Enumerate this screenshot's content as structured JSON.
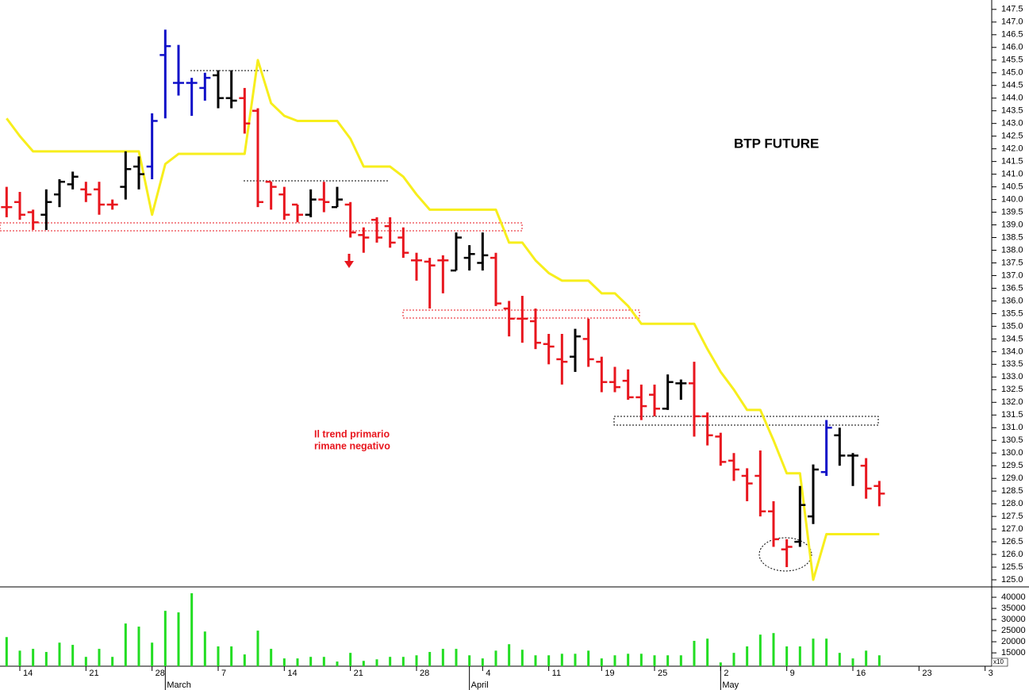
{
  "chart_data": {
    "type": "ohlc",
    "title": "BTP FUTURE",
    "annotation_lines": [
      "Il trend primario",
      "rimane negativo"
    ],
    "categories": [
      null,
      "14",
      null,
      null,
      null,
      null,
      "21",
      null,
      null,
      null,
      null,
      "28",
      null,
      null,
      null,
      null,
      "7",
      null,
      null,
      null,
      null,
      "14",
      null,
      null,
      null,
      null,
      "21",
      null,
      null,
      null,
      null,
      "28",
      null,
      null,
      null,
      null,
      "4",
      null,
      null,
      null,
      null,
      "11",
      null,
      null,
      null,
      "19",
      null,
      null,
      null,
      "25",
      null,
      null,
      null,
      null,
      "2",
      null,
      null,
      null,
      null,
      "9",
      null,
      null,
      null,
      null,
      "16",
      null,
      null,
      null,
      null,
      "23",
      null,
      null,
      null,
      null,
      "3"
    ],
    "month_labels": [
      null,
      null,
      null,
      null,
      null,
      null,
      null,
      null,
      null,
      null,
      null,
      null,
      "March",
      null,
      null,
      null,
      null,
      null,
      null,
      null,
      null,
      null,
      null,
      null,
      null,
      null,
      null,
      null,
      null,
      null,
      null,
      null,
      null,
      null,
      null,
      "April",
      null,
      null,
      null,
      null,
      null,
      null,
      null,
      null,
      null,
      null,
      null,
      null,
      null,
      null,
      null,
      null,
      null,
      null,
      "May",
      null,
      null,
      null,
      null,
      null,
      null,
      null,
      null,
      null,
      null,
      null,
      null,
      null,
      null,
      null,
      null,
      null,
      null,
      null,
      null
    ],
    "open": [
      139.7,
      139.9,
      139.5,
      139.4,
      140.2,
      140.6,
      140.4,
      140.4,
      139.8,
      140.5,
      141.3,
      141.3,
      145.7,
      144.6,
      144.6,
      144.4,
      144.9,
      144.0,
      144.0,
      143.5,
      140.7,
      140.2,
      139.8,
      139.4,
      140.0,
      139.7,
      139.8,
      138.6,
      139.2,
      138.95,
      138.5,
      137.6,
      137.55,
      137.6,
      137.2,
      137.7,
      137.5,
      137.7,
      135.7,
      135.3,
      135.2,
      134.3,
      133.7,
      133.8,
      134.5,
      133.6,
      132.8,
      132.85,
      132.2,
      132.3,
      131.75,
      132.75,
      132.75,
      131.45,
      130.65,
      129.7,
      129.1,
      129.1,
      127.7,
      126.2,
      126.5,
      127.5,
      129.25,
      130.7,
      129.9,
      129.5,
      128.7,
      null,
      null,
      null,
      null,
      null,
      null,
      null,
      null
    ],
    "high": [
      140.5,
      140.3,
      139.6,
      140.4,
      140.8,
      141.1,
      140.7,
      140.7,
      140.0,
      141.9,
      141.7,
      143.4,
      146.7,
      146.1,
      144.8,
      145.0,
      145.1,
      145.1,
      144.4,
      143.6,
      140.7,
      140.5,
      139.8,
      140.4,
      140.7,
      140.5,
      139.9,
      138.9,
      139.3,
      139.3,
      138.9,
      137.9,
      137.7,
      137.8,
      138.7,
      138.2,
      138.7,
      137.9,
      136.0,
      136.2,
      135.7,
      134.7,
      134.7,
      134.9,
      135.3,
      133.8,
      133.4,
      133.3,
      132.7,
      132.7,
      133.1,
      132.9,
      133.6,
      131.6,
      130.8,
      130.0,
      129.4,
      130.1,
      128.1,
      126.6,
      128.7,
      129.55,
      131.3,
      131.0,
      130.0,
      129.8,
      128.9,
      null,
      null,
      null,
      null,
      null,
      null,
      null,
      null
    ],
    "low": [
      139.3,
      139.2,
      138.8,
      138.8,
      139.7,
      140.4,
      139.9,
      139.4,
      139.6,
      140.0,
      140.4,
      140.8,
      143.2,
      144.1,
      143.3,
      143.9,
      143.6,
      143.6,
      142.6,
      139.7,
      139.6,
      139.2,
      139.1,
      139.3,
      139.5,
      139.7,
      138.5,
      137.9,
      138.3,
      138.1,
      137.7,
      136.8,
      135.7,
      136.3,
      137.2,
      137.2,
      137.2,
      135.8,
      134.6,
      134.35,
      134.1,
      133.5,
      132.7,
      133.2,
      133.4,
      132.4,
      132.4,
      132.1,
      131.3,
      131.45,
      131.7,
      132.1,
      130.65,
      130.3,
      129.5,
      128.9,
      128.1,
      127.5,
      126.3,
      125.5,
      126.3,
      127.2,
      129.1,
      129.5,
      128.7,
      128.2,
      127.9,
      null,
      null,
      null,
      null,
      null,
      null,
      null,
      null
    ],
    "close": [
      139.7,
      139.4,
      139.1,
      139.9,
      140.7,
      140.9,
      140.2,
      139.8,
      139.8,
      141.2,
      141.0,
      143.1,
      146.05,
      144.6,
      144.6,
      144.8,
      144.0,
      143.9,
      143.0,
      139.9,
      140.5,
      139.4,
      139.4,
      140.0,
      139.9,
      140.0,
      138.7,
      138.5,
      138.5,
      138.3,
      137.9,
      137.6,
      137.4,
      137.6,
      138.5,
      137.85,
      137.8,
      135.9,
      135.3,
      135.3,
      134.35,
      134.2,
      133.6,
      134.6,
      133.7,
      132.8,
      132.6,
      132.2,
      131.85,
      131.75,
      132.8,
      132.75,
      131.45,
      130.7,
      129.65,
      129.35,
      128.8,
      127.7,
      126.6,
      126.3,
      127.95,
      129.35,
      131.0,
      129.9,
      129.9,
      128.6,
      128.4,
      null,
      null,
      null,
      null,
      null,
      null,
      null,
      null
    ],
    "bar_colors": [
      "#e8161e",
      "#e8161e",
      "#e8161e",
      "#000000",
      "#000000",
      "#000000",
      "#e8161e",
      "#e8161e",
      "#e8161e",
      "#000000",
      "#000000",
      "#1010c8",
      "#1010c8",
      "#1010c8",
      "#1010c8",
      "#1010c8",
      "#000000",
      "#000000",
      "#e8161e",
      "#e8161e",
      "#e8161e",
      "#e8161e",
      "#e8161e",
      "#000000",
      "#e8161e",
      "#000000",
      "#e8161e",
      "#e8161e",
      "#e8161e",
      "#e8161e",
      "#e8161e",
      "#e8161e",
      "#e8161e",
      "#e8161e",
      "#000000",
      "#000000",
      "#000000",
      "#e8161e",
      "#e8161e",
      "#e8161e",
      "#e8161e",
      "#e8161e",
      "#e8161e",
      "#000000",
      "#e8161e",
      "#e8161e",
      "#e8161e",
      "#e8161e",
      "#e8161e",
      "#e8161e",
      "#000000",
      "#000000",
      "#e8161e",
      "#e8161e",
      "#e8161e",
      "#e8161e",
      "#e8161e",
      "#e8161e",
      "#e8161e",
      "#e8161e",
      "#000000",
      "#000000",
      "#1010c8",
      "#000000",
      "#000000",
      "#e8161e",
      "#e8161e",
      null,
      null,
      null,
      null,
      null,
      null,
      null,
      null
    ],
    "line": {
      "color": "#f7ee1c",
      "values": [
        143.2,
        142.5,
        141.9,
        141.9,
        141.9,
        141.9,
        141.9,
        141.9,
        141.9,
        141.9,
        141.9,
        139.4,
        141.4,
        141.8,
        141.8,
        141.8,
        141.8,
        141.8,
        141.8,
        145.5,
        143.8,
        143.3,
        143.1,
        143.1,
        143.1,
        143.1,
        142.4,
        141.3,
        141.3,
        141.3,
        140.9,
        140.2,
        139.6,
        139.6,
        139.6,
        139.6,
        139.6,
        139.6,
        138.3,
        138.3,
        137.6,
        137.1,
        136.8,
        136.8,
        136.8,
        136.3,
        136.3,
        135.8,
        135.1,
        135.1,
        135.1,
        135.1,
        135.1,
        134.1,
        133.2,
        132.5,
        131.7,
        131.7,
        130.5,
        129.2,
        129.2,
        125.0,
        126.8,
        126.8,
        126.8,
        126.8,
        126.8,
        null,
        null,
        null,
        null,
        null,
        null,
        null,
        null
      ]
    },
    "ylim": [
      124.72,
      147.87
    ],
    "yticks": [
      {
        "value": 125,
        "label": "125.0"
      },
      125.5,
      {
        "value": 126,
        "label": "126.0"
      },
      126.5,
      {
        "value": 127,
        "label": "127.0"
      },
      127.5,
      {
        "value": 128,
        "label": "128.0"
      },
      128.5,
      {
        "value": 129,
        "label": "129.0"
      },
      129.5,
      {
        "value": 130,
        "label": "130.0"
      },
      130.5,
      {
        "value": 131,
        "label": "131.0"
      },
      131.5,
      {
        "value": 132,
        "label": "132.0"
      },
      132.5,
      {
        "value": 133,
        "label": "133.0"
      },
      133.5,
      {
        "value": 134,
        "label": "134.0"
      },
      134.5,
      {
        "value": 135,
        "label": "135.0"
      },
      135.5,
      {
        "value": 136,
        "label": "136.0"
      },
      136.5,
      {
        "value": 137,
        "label": "137.0"
      },
      137.5,
      {
        "value": 138,
        "label": "138.0"
      },
      138.5,
      {
        "value": 139,
        "label": "139.0"
      },
      139.5,
      {
        "value": 140,
        "label": "140.0"
      },
      140.5,
      {
        "value": 141,
        "label": "141.0"
      },
      141.5,
      {
        "value": 142,
        "label": "142.0"
      },
      142.5,
      {
        "value": 143,
        "label": "143.0"
      },
      143.5,
      {
        "value": 144,
        "label": "144.0"
      },
      144.5,
      {
        "value": 145,
        "label": "145.0"
      },
      145.5,
      {
        "value": 146,
        "label": "146.0"
      },
      146.5,
      {
        "value": 147,
        "label": "147.0"
      },
      147.5
    ],
    "volume": {
      "type": "bar",
      "color": "#22dd22",
      "unit_label": "x10",
      "values": [
        22100,
        16000,
        16800,
        15400,
        19600,
        18600,
        13200,
        16800,
        13200,
        28200,
        26800,
        19600,
        33900,
        33200,
        41800,
        24600,
        17900,
        17900,
        14300,
        25000,
        16800,
        12500,
        12500,
        13200,
        13200,
        11100,
        15000,
        11400,
        12100,
        13200,
        13200,
        13900,
        15400,
        16800,
        16800,
        13900,
        12500,
        16000,
        18900,
        16400,
        13900,
        13900,
        14600,
        14600,
        16000,
        12500,
        13900,
        14600,
        14600,
        13900,
        13900,
        13900,
        20400,
        21400,
        10700,
        15000,
        17900,
        23200,
        23900,
        17900,
        17900,
        21400,
        21400,
        15000,
        12500,
        16000,
        13900,
        null,
        null,
        null,
        null,
        null,
        null,
        null,
        null
      ],
      "ylim": [
        9000,
        44300
      ],
      "yticks": [
        15000,
        20000,
        25000,
        30000,
        35000,
        40000
      ]
    }
  }
}
